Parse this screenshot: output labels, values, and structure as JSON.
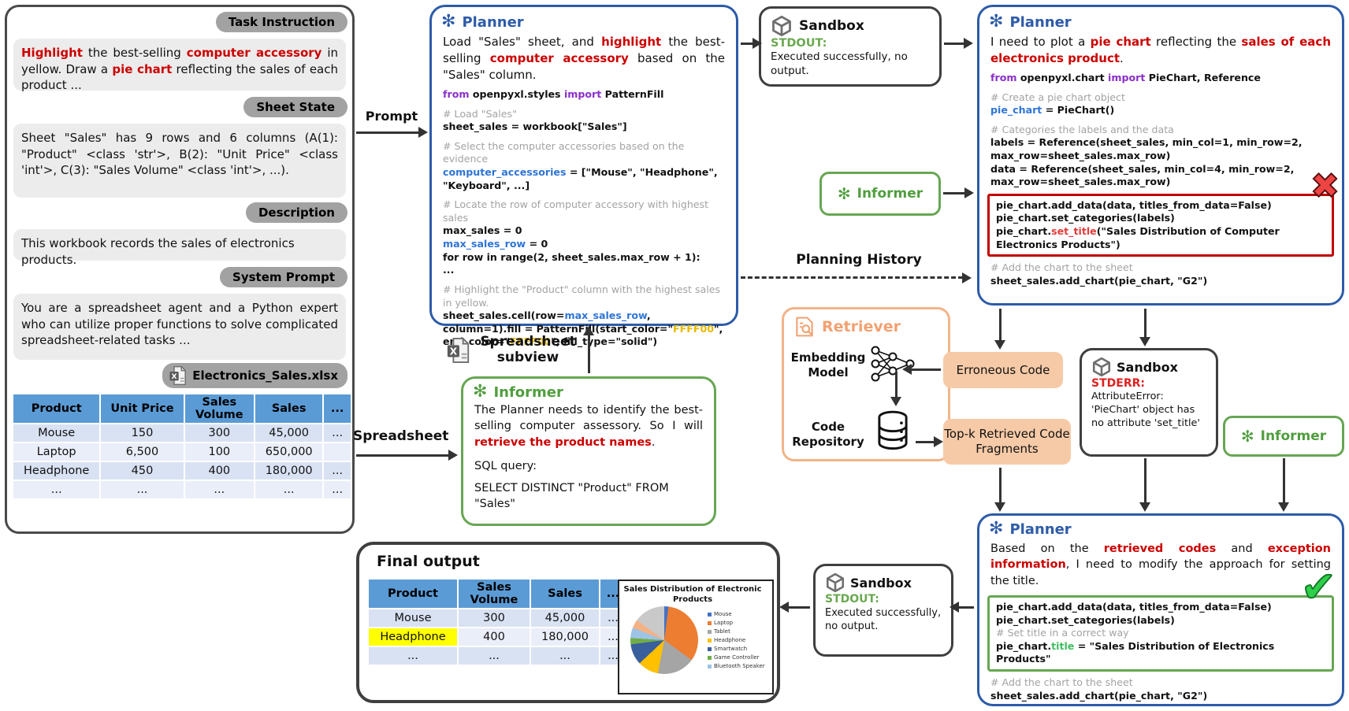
{
  "colors": {
    "planner_accent": "#2d5ba8",
    "informer_accent": "#4f9e3e",
    "retriever_accent": "#f2a172",
    "highlight_yellow": "#ffff00",
    "error_red": "#cc0000",
    "stdout_green": "#6aa84f",
    "stderr_red": "#e02020"
  },
  "left_panel": {
    "task_badge": "Task Instruction",
    "task_text": [
      [
        "Highlight",
        "red"
      ],
      [
        " the best-selling ",
        "plain"
      ],
      [
        "computer accessory",
        "red"
      ],
      [
        " in yellow. Draw a ",
        "plain"
      ],
      [
        "pie chart",
        "red"
      ],
      [
        " reflecting the sales of each product ...",
        "plain"
      ]
    ],
    "sheet_badge": "Sheet State",
    "sheet_text": "Sheet \"Sales\" has 9 rows and 6 columns (A(1): \"Product\" <class 'str'>, B(2): \"Unit Price\" <class 'int'>, C(3): \"Sales Volume\" <class 'int'>, ...).",
    "desc_badge": "Description",
    "desc_text": "This workbook records the sales of electronics products.",
    "sys_badge": "System Prompt",
    "sys_text": "You are a spreadsheet agent and a Python expert who can utilize proper functions to solve complicated spreadsheet-related tasks ...",
    "file_badge": "Electronics_Sales.xlsx",
    "table": {
      "headers": [
        "Product",
        "Unit Price",
        "Sales Volume",
        "Sales",
        "..."
      ],
      "rows": [
        [
          "Mouse",
          "150",
          "300",
          "45,000",
          "..."
        ],
        [
          "Laptop",
          "6,500",
          "100",
          "650,000",
          ""
        ],
        [
          "Headphone",
          "450",
          "400",
          "180,000",
          "..."
        ],
        [
          "...",
          "...",
          "...",
          "...",
          "..."
        ]
      ]
    }
  },
  "flow_labels": {
    "prompt": "Prompt",
    "planning_history": "Planning History",
    "spreadsheet_subview": "Spreadsheet subview",
    "spreadsheet": "Spreadsheet",
    "erroneous_code": "Erroneous Code",
    "topk": "Top-k Retrieved Code Fragments"
  },
  "planner1": {
    "title": "Planner",
    "intro": [
      [
        "Load \"Sales\" sheet, and ",
        "plain"
      ],
      [
        "highlight",
        "red"
      ],
      [
        " the best-selling ",
        "plain"
      ],
      [
        "computer accessory",
        "red"
      ],
      [
        " based on the \"Sales\" column.",
        "plain"
      ]
    ],
    "code": [
      [
        [
          "from",
          "kw"
        ],
        [
          " openpyxl.styles ",
          "plain"
        ],
        [
          "import",
          "kw"
        ],
        [
          " PatternFill",
          "plain"
        ]
      ],
      [],
      [
        [
          "# Load \"Sales\"",
          "comment"
        ]
      ],
      [
        [
          "sheet_sales = workbook[\"Sales\"]",
          "plain"
        ]
      ],
      [],
      [
        [
          "# Select the computer accessories based on the evidence",
          "comment"
        ]
      ],
      [
        [
          "computer_accessories",
          "blue"
        ],
        [
          " = [\"Mouse\", \"Headphone\", \"Keyboard\", ...]",
          "plain"
        ]
      ],
      [],
      [
        [
          "# Locate the row of computer accessory with highest sales",
          "comment"
        ]
      ],
      [
        [
          "max_sales = 0",
          "plain"
        ]
      ],
      [
        [
          "max_sales_row",
          "blue"
        ],
        [
          " = 0",
          "plain"
        ]
      ],
      [
        [
          "for row in range(2, sheet_sales.max_row + 1):",
          "plain"
        ]
      ],
      [
        [
          "    ...",
          "plain"
        ]
      ],
      [],
      [
        [
          "# Highlight the \"Product\" column with the highest sales in yellow.",
          "comment"
        ]
      ],
      [
        [
          "sheet_sales.cell(row=",
          "plain"
        ],
        [
          "max_sales_row",
          "blue"
        ],
        [
          ", column=1).fill = PatternFill(start_color=\"",
          "plain"
        ],
        [
          "FFFF00",
          "yellow"
        ],
        [
          "\", end_color=\"",
          "plain"
        ],
        [
          "FFFF00",
          "yellow"
        ],
        [
          "\", fill_type=\"solid\")",
          "plain"
        ]
      ]
    ]
  },
  "sandbox1": {
    "title": "Sandbox",
    "stream_label": "STDOUT:",
    "body": "Executed successfully, no output."
  },
  "planner2": {
    "title": "Planner",
    "intro": [
      [
        "I need to plot a ",
        "plain"
      ],
      [
        "pie chart",
        "red"
      ],
      [
        " reflecting the ",
        "plain"
      ],
      [
        "sales of each electronics product",
        "red"
      ],
      [
        ".",
        "plain"
      ]
    ],
    "code_top": [
      [
        [
          "from",
          "kw"
        ],
        [
          " openpyxl.chart ",
          "plain"
        ],
        [
          "import",
          "kw"
        ],
        [
          " PieChart, Reference",
          "plain"
        ]
      ],
      [],
      [
        [
          "# Create a pie chart object",
          "comment"
        ]
      ],
      [
        [
          "pie_chart",
          "blue"
        ],
        [
          " = PieChart()",
          "plain"
        ]
      ],
      [],
      [
        [
          "# Categories the labels and the data",
          "comment"
        ]
      ],
      [
        [
          "labels = Reference(sheet_sales, min_col=1, min_row=2, max_row=sheet_sales.max_row)",
          "plain"
        ]
      ],
      [
        [
          "data = Reference(sheet_sales, min_col=4, min_row=2, max_row=sheet_sales.max_row)",
          "plain"
        ]
      ]
    ],
    "code_error": [
      [
        [
          "pie_chart.add_data(data, titles_from_data=False)",
          "plain"
        ]
      ],
      [
        [
          "pie_chart.set_categories(labels)",
          "plain"
        ]
      ],
      [
        [
          "pie_chart.",
          "plain"
        ],
        [
          "set_title",
          "redcode"
        ],
        [
          "(\"Sales Distribution of Computer Electronics Products\")",
          "plain"
        ]
      ]
    ],
    "code_bottom": [
      [
        [
          "# Add the chart to the sheet",
          "comment"
        ]
      ],
      [
        [
          "sheet_sales.add_chart(pie_chart, \"G2\")",
          "plain"
        ]
      ]
    ]
  },
  "informer_mini1": {
    "title": "Informer"
  },
  "retriever": {
    "title": "Retriever",
    "embedding_label": "Embedding Model",
    "repo_label": "Code Repository"
  },
  "sandbox2": {
    "title": "Sandbox",
    "stream_label": "STDERR:",
    "body": "AttributeError: 'PieChart' object has no attribute 'set_title'"
  },
  "informer_mini2": {
    "title": "Informer"
  },
  "planner3": {
    "title": "Planner",
    "intro": [
      [
        "Based on the ",
        "plain"
      ],
      [
        "retrieved codes",
        "red"
      ],
      [
        " and ",
        "plain"
      ],
      [
        "exception information",
        "red"
      ],
      [
        ", I need to modify the approach for setting the title.",
        "plain"
      ]
    ],
    "code_fixed": [
      [
        [
          "pie_chart.add_data(data, titles_from_data=False)",
          "plain"
        ]
      ],
      [
        [
          "pie_chart.set_categories(labels)",
          "plain"
        ]
      ],
      [
        [
          "# Set title in a correct way",
          "comment"
        ]
      ],
      [
        [
          "pie_chart.",
          "plain"
        ],
        [
          "title",
          "green"
        ],
        [
          " = \"Sales Distribution of Electronics Products\"",
          "plain"
        ]
      ]
    ],
    "code_bottom": [
      [
        [
          "# Add the chart to the sheet",
          "comment"
        ]
      ],
      [
        [
          "sheet_sales.add_chart(pie_chart, \"G2\")",
          "plain"
        ]
      ]
    ]
  },
  "informer_big": {
    "title": "Informer",
    "body": [
      [
        "The Planner needs to identify the best-selling computer assessory. So I will ",
        "plain"
      ],
      [
        "retrieve the product names",
        "red"
      ],
      [
        ".",
        "plain"
      ]
    ],
    "sql_label": "SQL query:",
    "sql": "SELECT DISTINCT \"Product\" FROM \"Sales\""
  },
  "sandbox3": {
    "title": "Sandbox",
    "stream_label": "STDOUT:",
    "body": "Executed successfully, no output."
  },
  "final_output": {
    "title": "Final output",
    "table": {
      "headers": [
        "Product",
        "Sales Volume",
        "Sales",
        "..."
      ],
      "rows": [
        [
          "Mouse",
          "300",
          "45,000",
          "..."
        ],
        [
          {
            "t": "Headphone",
            "hl": true
          },
          "400",
          "180,000",
          "..."
        ],
        [
          "...",
          "...",
          "...",
          "..."
        ]
      ]
    }
  },
  "chart_data": {
    "type": "pie",
    "title": "Sales Distribution of Electronic Products",
    "legend_position": "right",
    "grid": false,
    "segments": [
      {
        "label": "Mouse",
        "value": 2,
        "color": "#4472C4"
      },
      {
        "label": "Laptop",
        "value": 33,
        "color": "#ED7D31"
      },
      {
        "label": "Tablet",
        "value": 18,
        "color": "#A5A5A5"
      },
      {
        "label": "Headphone",
        "value": 10,
        "color": "#FFC000"
      },
      {
        "label": "Smartwatch",
        "value": 10,
        "color": "#3A5F9E"
      },
      {
        "label": "Game Controller",
        "value": 3,
        "color": "#70AD47"
      },
      {
        "label": "Bluetooth Speaker",
        "value": 5,
        "color": "#9DC3E6"
      },
      {
        "label": "",
        "value": 4,
        "color": "#F4B183"
      },
      {
        "label": "",
        "value": 15,
        "color": "#C9C9C9"
      }
    ]
  }
}
